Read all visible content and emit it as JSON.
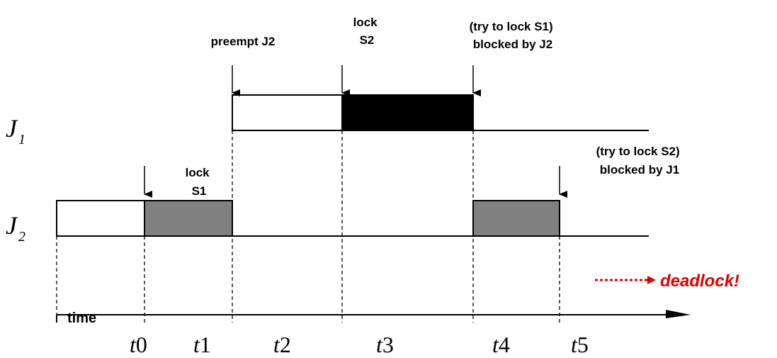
{
  "jobs": {
    "j1": {
      "letter": "J",
      "index": "1"
    },
    "j2": {
      "letter": "J",
      "index": "2"
    }
  },
  "annotations": {
    "preempt_j2": "preempt J2",
    "lock_s2": [
      "lock",
      "S2"
    ],
    "try_lock_s1": [
      "(try to lock S1)",
      "blocked by J2"
    ],
    "lock_s1": [
      "lock",
      "S1"
    ],
    "try_lock_s2": [
      "(try to lock S2)",
      "blocked by J1"
    ]
  },
  "time_axis": {
    "label": "time",
    "ticks": [
      {
        "t": "t",
        "n": "0"
      },
      {
        "t": "t",
        "n": "1"
      },
      {
        "t": "t",
        "n": "2"
      },
      {
        "t": "t",
        "n": "3"
      },
      {
        "t": "t",
        "n": "4"
      },
      {
        "t": "t",
        "n": "5"
      }
    ]
  },
  "result": {
    "label": "deadlock!",
    "color": "#e00000"
  },
  "segments": [
    {
      "job": "J1",
      "from": "t1",
      "to": "t2",
      "fill": "#ffffff",
      "meaning": "running"
    },
    {
      "job": "J1",
      "from": "t2",
      "to": "t3",
      "fill": "#000000",
      "meaning": "holding S2"
    },
    {
      "job": "J2",
      "from": "start",
      "to": "t0",
      "fill": "#ffffff",
      "meaning": "running"
    },
    {
      "job": "J2",
      "from": "t0",
      "to": "t1",
      "fill": "#808080",
      "meaning": "holding S1"
    },
    {
      "job": "J2",
      "from": "t3",
      "to": "t4",
      "fill": "#808080",
      "meaning": "holding S1"
    }
  ]
}
